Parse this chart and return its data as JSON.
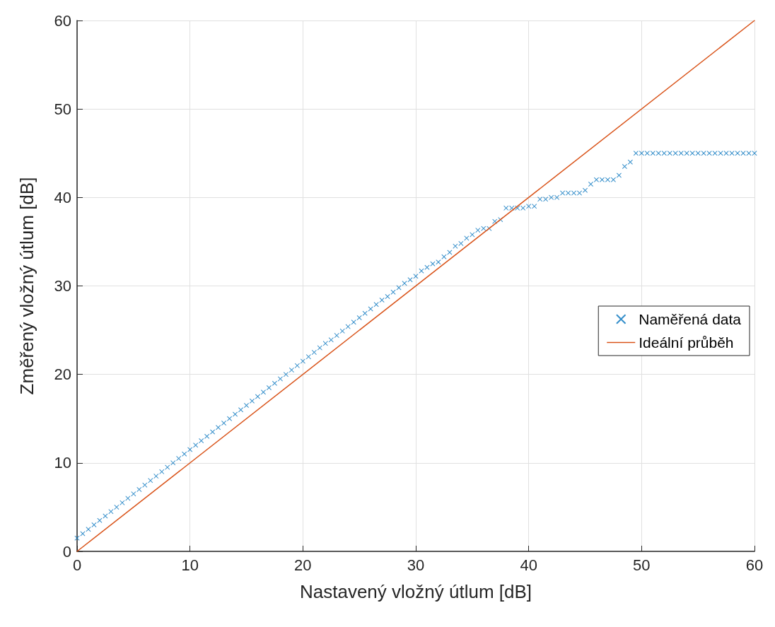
{
  "chart_data": {
    "type": "scatter",
    "xlabel": "Nastavený vložný útlum [dB]",
    "ylabel": "Změřený vložný útlum [dB]",
    "xlim": [
      0,
      60
    ],
    "xticks": [
      0,
      10,
      20,
      30,
      40,
      50,
      60
    ],
    "ylim": [
      0,
      60
    ],
    "yticks": [
      0,
      10,
      20,
      30,
      40,
      50,
      60
    ],
    "grid": true,
    "legend": "right",
    "marker": "cross",
    "series": [
      {
        "name": "Naměřená data",
        "color": "#0072bd",
        "x": [
          0,
          0.5,
          1,
          1.5,
          2,
          2.5,
          3,
          3.5,
          4,
          4.5,
          5,
          5.5,
          6,
          6.5,
          7,
          7.5,
          8,
          8.5,
          9,
          9.5,
          10,
          10.5,
          11,
          11.5,
          12,
          12.5,
          13,
          13.5,
          14,
          14.5,
          15,
          15.5,
          16,
          16.5,
          17,
          17.5,
          18,
          18.5,
          19,
          19.5,
          20,
          20.5,
          21,
          21.5,
          22,
          22.5,
          23,
          23.5,
          24,
          24.5,
          25,
          25.5,
          26,
          26.5,
          27,
          27.5,
          28,
          28.5,
          29,
          29.5,
          30,
          30.5,
          31,
          31.5,
          32,
          32.5,
          33,
          33.5,
          34,
          34.5,
          35,
          35.5,
          36,
          36.5,
          37,
          37.5,
          38,
          38.5,
          39,
          39.5,
          40,
          40.5,
          41,
          41.5,
          42,
          42.5,
          43,
          43.5,
          44,
          44.5,
          45,
          45.5,
          46,
          46.5,
          47,
          47.5,
          48,
          48.5,
          49,
          49.5,
          50,
          50.5,
          51,
          51.5,
          52,
          52.5,
          53,
          53.5,
          54,
          54.5,
          55,
          55.5,
          56,
          56.5,
          57,
          57.5,
          58,
          58.5,
          59,
          59.5,
          60
        ],
        "values": [
          1.5,
          2,
          2.5,
          3,
          3.5,
          4,
          4.5,
          5,
          5.5,
          6,
          6.5,
          7,
          7.5,
          8,
          8.5,
          9,
          9.5,
          10,
          10.5,
          11,
          11.5,
          12,
          12.5,
          13,
          13.5,
          14,
          14.5,
          15,
          15.5,
          16,
          16.5,
          17,
          17.5,
          18,
          18.5,
          19,
          19.5,
          20,
          20.5,
          21,
          21.5,
          22,
          22.5,
          23,
          23.5,
          23.9,
          24.4,
          24.9,
          25.4,
          25.9,
          26.4,
          26.9,
          27.4,
          27.9,
          28.4,
          28.8,
          29.3,
          29.8,
          30.3,
          30.7,
          31.1,
          31.7,
          32.1,
          32.5,
          32.7,
          33.3,
          33.8,
          34.5,
          34.8,
          35.4,
          35.8,
          36.3,
          36.5,
          36.5,
          37.3,
          37.5,
          38.8,
          38.8,
          38.8,
          38.8,
          39,
          39,
          39.8,
          39.8,
          40,
          40,
          40.5,
          40.5,
          40.5,
          40.5,
          40.8,
          41.5,
          42,
          42,
          42,
          42,
          42.5,
          43.5,
          44,
          45,
          45,
          45,
          45,
          45,
          45,
          45,
          45,
          45,
          45,
          45,
          45,
          45,
          45,
          45,
          45,
          45,
          45,
          45,
          45,
          45,
          45
        ]
      },
      {
        "name": "Ideální průběh",
        "type": "line",
        "color": "#d95319",
        "marker": "none",
        "line_style": "solid",
        "x": [
          0,
          60
        ],
        "values": [
          0,
          60
        ]
      }
    ]
  }
}
